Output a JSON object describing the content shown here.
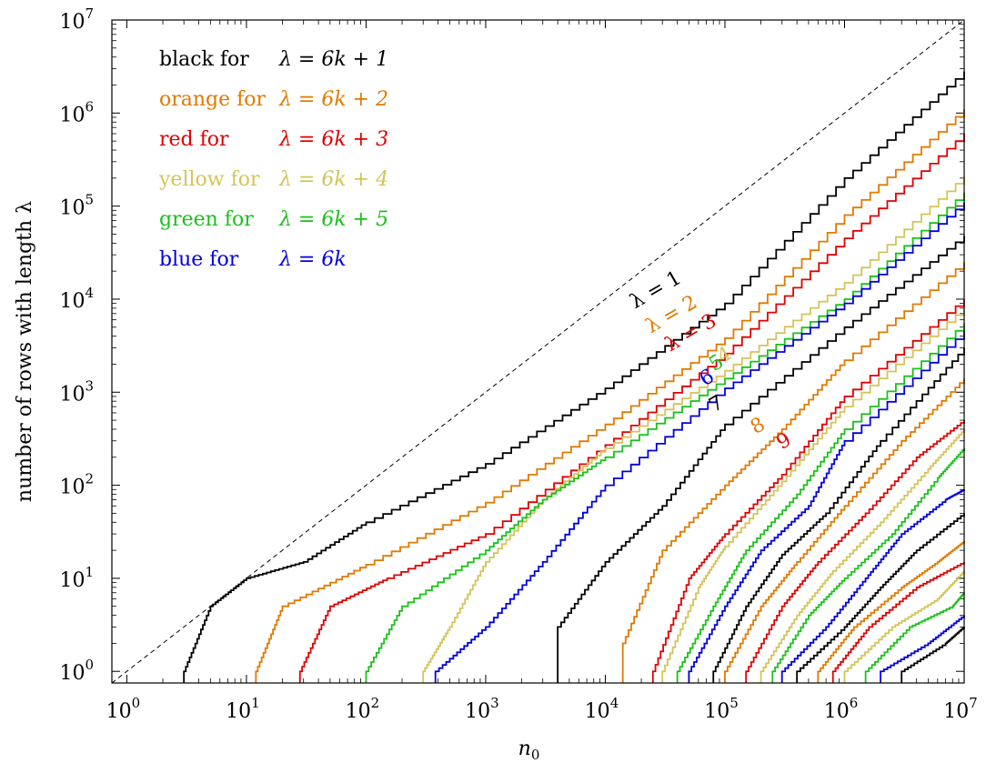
{
  "chart_data": {
    "type": "line",
    "xlabel": "n",
    "xlabel_sub": "0",
    "ylabel": "number of rows with length λ",
    "x_scale": "log",
    "y_scale": "log",
    "xlim": [
      0.75,
      10000000
    ],
    "ylim": [
      0.75,
      10000000
    ],
    "x_ticks": [
      {
        "base": "10",
        "exp": "0",
        "value": 1
      },
      {
        "base": "10",
        "exp": "1",
        "value": 10
      },
      {
        "base": "10",
        "exp": "2",
        "value": 100
      },
      {
        "base": "10",
        "exp": "3",
        "value": 1000
      },
      {
        "base": "10",
        "exp": "4",
        "value": 10000
      },
      {
        "base": "10",
        "exp": "5",
        "value": 100000
      },
      {
        "base": "10",
        "exp": "6",
        "value": 1000000
      },
      {
        "base": "10",
        "exp": "7",
        "value": 10000000
      }
    ],
    "y_ticks": [
      {
        "base": "10",
        "exp": "0",
        "value": 1
      },
      {
        "base": "10",
        "exp": "1",
        "value": 10
      },
      {
        "base": "10",
        "exp": "2",
        "value": 100
      },
      {
        "base": "10",
        "exp": "3",
        "value": 1000
      },
      {
        "base": "10",
        "exp": "4",
        "value": 10000
      },
      {
        "base": "10",
        "exp": "5",
        "value": 100000
      },
      {
        "base": "10",
        "exp": "6",
        "value": 1000000
      },
      {
        "base": "10",
        "exp": "7",
        "value": 10000000
      }
    ],
    "reference_line": {
      "style": "dashed",
      "color": "#000000",
      "x": [
        0.75,
        10000000
      ],
      "y": [
        0.75,
        10000000
      ]
    },
    "legend_position": "top-left",
    "legend": [
      {
        "prefix": "black for",
        "formula": "λ = 6k + 1",
        "color": "#000000"
      },
      {
        "prefix": "orange for",
        "formula": "λ = 6k + 2",
        "color": "#e07a00"
      },
      {
        "prefix": "red for",
        "formula": "λ = 6k + 3",
        "color": "#e00000"
      },
      {
        "prefix": "yellow for",
        "formula": "λ = 6k + 4",
        "color": "#d4c45a"
      },
      {
        "prefix": "green for",
        "formula": "λ = 6k + 5",
        "color": "#19c219"
      },
      {
        "prefix": "blue for",
        "formula": "λ = 6k",
        "color": "#0000e0"
      }
    ],
    "colors": {
      "black": "#000000",
      "orange": "#e07a00",
      "red": "#e00000",
      "yellow": "#d4c45a",
      "green": "#19c219",
      "blue": "#0000e0"
    },
    "series": [
      {
        "lambda": 1,
        "color": "#000000",
        "x": [
          3,
          5,
          10,
          30,
          100,
          1000,
          10000,
          100000,
          1000000,
          10000000
        ],
        "y": [
          1,
          5,
          10,
          15,
          40,
          170,
          1100,
          9000,
          200000,
          2800000
        ]
      },
      {
        "lambda": 2,
        "color": "#e07a00",
        "x": [
          12,
          20,
          100,
          1000,
          10000,
          100000,
          1000000,
          10000000
        ],
        "y": [
          1,
          5,
          14,
          65,
          450,
          3800,
          80000,
          1100000
        ]
      },
      {
        "lambda": 3,
        "color": "#e00000",
        "x": [
          28,
          50,
          150,
          1000,
          10000,
          100000,
          1000000,
          10000000
        ],
        "y": [
          1,
          5,
          10,
          30,
          270,
          2600,
          45000,
          600000
        ]
      },
      {
        "lambda": 4,
        "color": "#d4c45a",
        "x": [
          300,
          500,
          1000,
          3000,
          10000,
          100000,
          1000000,
          10000000
        ],
        "y": [
          1,
          3,
          15,
          70,
          250,
          1700,
          15000,
          210000
        ]
      },
      {
        "lambda": 5,
        "color": "#19c219",
        "x": [
          100,
          200,
          1000,
          3000,
          10000,
          100000,
          1000000,
          10000000
        ],
        "y": [
          1,
          5,
          20,
          70,
          200,
          1400,
          10000,
          140000
        ]
      },
      {
        "lambda": 6,
        "color": "#0000e0",
        "x": [
          380,
          1000,
          3000,
          10000,
          100000,
          1000000,
          10000000
        ],
        "y": [
          1,
          3,
          15,
          100,
          1100,
          9000,
          110000
        ]
      },
      {
        "lambda": 7,
        "color": "#000000",
        "x": [
          4000,
          10000,
          30000,
          100000,
          1000000,
          10000000
        ],
        "y": [
          3,
          15,
          60,
          450,
          5000,
          48000
        ]
      },
      {
        "lambda": 8,
        "color": "#e07a00",
        "x": [
          14000,
          30000,
          100000,
          300000,
          1000000,
          10000000
        ],
        "y": [
          2,
          20,
          100,
          400,
          2200,
          25000
        ]
      },
      {
        "lambda": 9,
        "color": "#e00000",
        "x": [
          25000,
          50000,
          100000,
          300000,
          1000000,
          10000000
        ],
        "y": [
          1,
          10,
          30,
          130,
          900,
          10000
        ]
      },
      {
        "lambda": 10,
        "color": "#d4c45a",
        "x": [
          30000,
          60000,
          100000,
          300000,
          1000000,
          10000000
        ],
        "y": [
          1,
          8,
          22,
          110,
          700,
          8000
        ]
      },
      {
        "lambda": 11,
        "color": "#19c219",
        "x": [
          40000,
          80000,
          150000,
          400000,
          1000000,
          10000000
        ],
        "y": [
          1,
          5,
          20,
          80,
          400,
          5500
        ]
      },
      {
        "lambda": 12,
        "color": "#0000e0",
        "x": [
          50000,
          100000,
          200000,
          500000,
          1000000,
          10000000
        ],
        "y": [
          1,
          5,
          20,
          60,
          300,
          4500
        ]
      },
      {
        "lambda": 13,
        "color": "#000000",
        "x": [
          80000,
          150000,
          300000,
          700000,
          2000000,
          10000000
        ],
        "y": [
          1,
          5,
          18,
          50,
          300,
          3000
        ]
      },
      {
        "lambda": 14,
        "color": "#e07a00",
        "x": [
          100000,
          200000,
          400000,
          1000000,
          3000000,
          10000000
        ],
        "y": [
          1,
          5,
          15,
          60,
          300,
          1400
        ]
      },
      {
        "lambda": 15,
        "color": "#e00000",
        "x": [
          150000,
          300000,
          600000,
          1500000,
          4000000,
          10000000
        ],
        "y": [
          1,
          5,
          15,
          50,
          200,
          500
        ]
      },
      {
        "lambda": 16,
        "color": "#d4c45a",
        "x": [
          200000,
          400000,
          800000,
          2000000,
          5000000,
          10000000
        ],
        "y": [
          1,
          4,
          12,
          40,
          150,
          400
        ]
      },
      {
        "lambda": 17,
        "color": "#19c219",
        "x": [
          250000,
          500000,
          1000000,
          2500000,
          6000000,
          10000000
        ],
        "y": [
          1,
          4,
          10,
          30,
          120,
          250
        ]
      },
      {
        "lambda": 18,
        "color": "#0000e0",
        "x": [
          300000,
          700000,
          1500000,
          3000000,
          7000000,
          10000000
        ],
        "y": [
          1,
          3,
          10,
          30,
          70,
          90
        ]
      },
      {
        "lambda": 19,
        "color": "#000000",
        "x": [
          400000,
          1000000,
          2000000,
          4000000,
          10000000
        ],
        "y": [
          1,
          3,
          8,
          20,
          50
        ]
      },
      {
        "lambda": 20,
        "color": "#e07a00",
        "x": [
          600000,
          1200000,
          3000000,
          6000000,
          10000000
        ],
        "y": [
          1,
          3,
          8,
          15,
          25
        ]
      },
      {
        "lambda": 21,
        "color": "#e00000",
        "x": [
          800000,
          1600000,
          4000000,
          10000000
        ],
        "y": [
          1,
          3,
          8,
          15
        ]
      },
      {
        "lambda": 22,
        "color": "#d4c45a",
        "x": [
          1000000,
          2500000,
          6000000,
          10000000
        ],
        "y": [
          1,
          3,
          6,
          12
        ]
      },
      {
        "lambda": 23,
        "color": "#19c219",
        "x": [
          1500000,
          3500000,
          8000000,
          10000000
        ],
        "y": [
          1,
          3,
          5,
          7
        ]
      },
      {
        "lambda": 24,
        "color": "#0000e0",
        "x": [
          2000000,
          5000000,
          10000000
        ],
        "y": [
          1,
          2,
          4
        ]
      },
      {
        "lambda": 25,
        "color": "#000000",
        "x": [
          3000000,
          7000000,
          10000000
        ],
        "y": [
          1,
          2,
          3
        ]
      }
    ],
    "curve_labels": [
      {
        "text": "λ = 1",
        "color": "#000000",
        "x": 28000,
        "y": 11000,
        "angle": -30
      },
      {
        "text": "λ = 2",
        "color": "#e07a00",
        "x": 38000,
        "y": 6000,
        "angle": -30
      },
      {
        "text": "λ = 3",
        "color": "#e00000",
        "x": 55000,
        "y": 3800,
        "angle": -30
      },
      {
        "text": "4",
        "color": "#d4c45a",
        "x": 105000,
        "y": 2200,
        "angle": -30
      },
      {
        "text": "5",
        "color": "#19c219",
        "x": 90000,
        "y": 1800,
        "angle": -30
      },
      {
        "text": "6",
        "color": "#0000e0",
        "x": 75000,
        "y": 1250,
        "angle": -30
      },
      {
        "text": "7",
        "color": "#000000",
        "x": 90000,
        "y": 650,
        "angle": -30
      },
      {
        "text": "8",
        "color": "#e07a00",
        "x": 200000,
        "y": 380,
        "angle": -30
      },
      {
        "text": "9",
        "color": "#e00000",
        "x": 330000,
        "y": 260,
        "angle": -30
      }
    ]
  }
}
